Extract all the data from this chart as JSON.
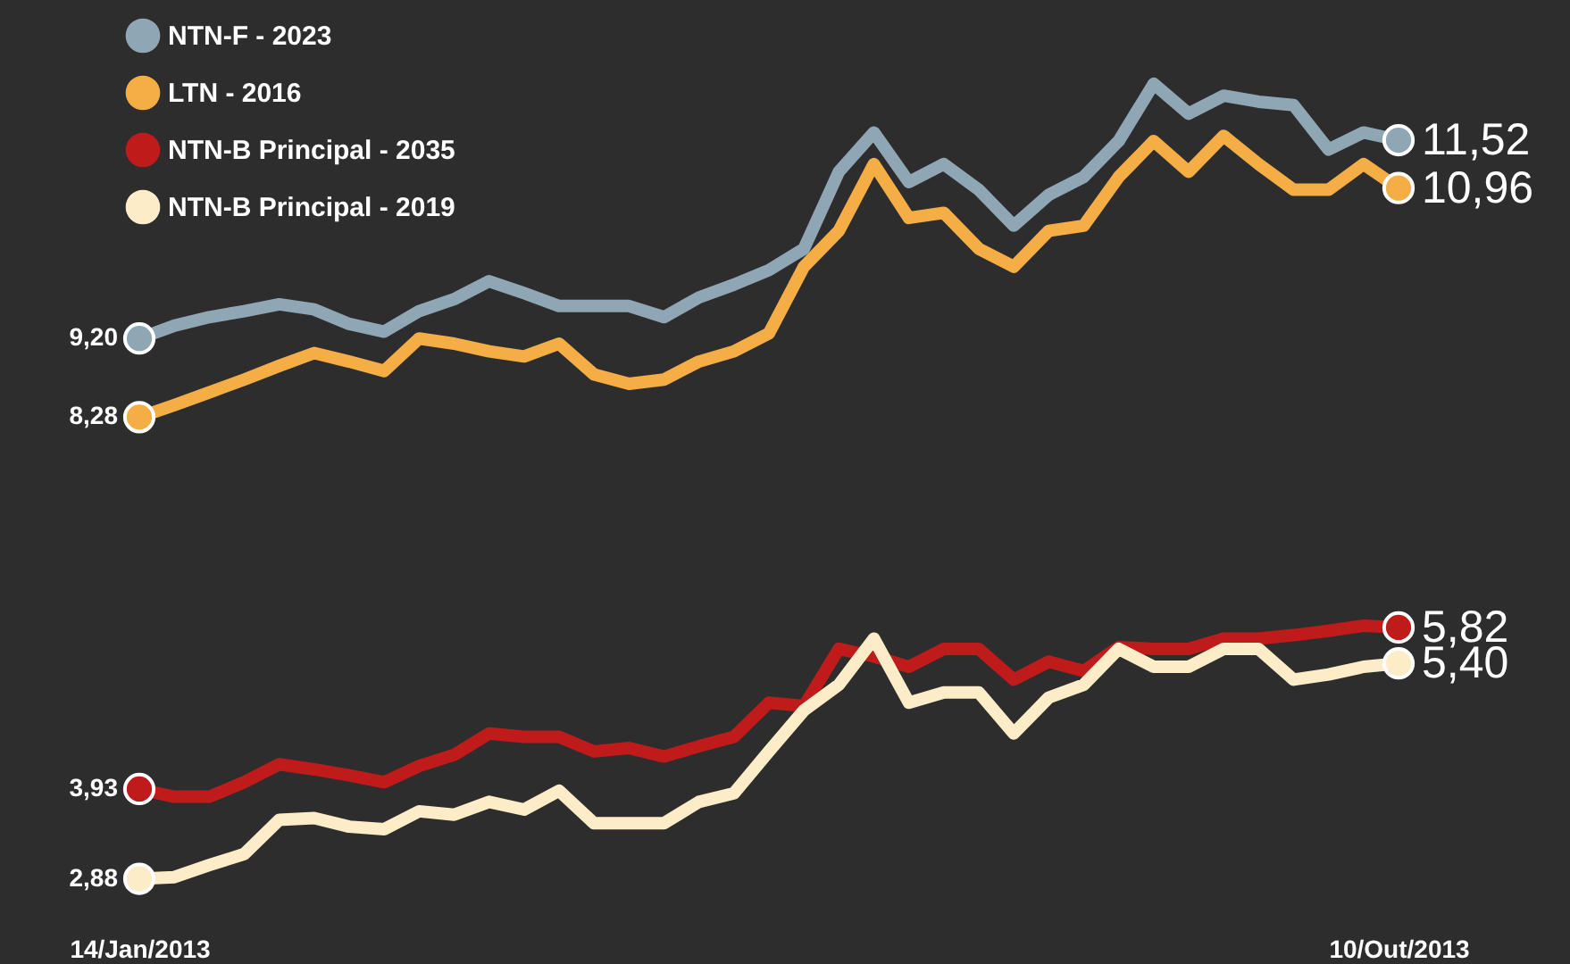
{
  "chart_data": {
    "type": "line",
    "categories": [
      "14/Jan/2013",
      null,
      null,
      null,
      null,
      null,
      null,
      null,
      null,
      null,
      null,
      null,
      null,
      null,
      null,
      null,
      null,
      null,
      null,
      null,
      null,
      null,
      null,
      null,
      null,
      null,
      null,
      null,
      null,
      null,
      null,
      null,
      null,
      null,
      null,
      null,
      "10/Out/2013"
    ],
    "legend": "top left",
    "series": [
      {
        "name": "NTN-F - 2023",
        "color": "#8fa6b5",
        "values": [
          9.2,
          9.35,
          9.45,
          9.52,
          9.6,
          9.54,
          9.37,
          9.28,
          9.52,
          9.66,
          9.87,
          9.73,
          9.58,
          9.58,
          9.58,
          9.45,
          9.68,
          9.83,
          10.0,
          10.25,
          11.15,
          11.61,
          11.03,
          11.24,
          10.94,
          10.52,
          10.88,
          11.09,
          11.51,
          12.18,
          11.83,
          12.04,
          11.97,
          11.93,
          11.41,
          11.61,
          11.52
        ],
        "value_labels": [
          "9,20",
          null,
          null,
          null,
          null,
          null,
          null,
          null,
          null,
          null,
          null,
          null,
          null,
          null,
          null,
          null,
          null,
          null,
          null,
          null,
          null,
          null,
          null,
          null,
          null,
          null,
          null,
          null,
          null,
          null,
          null,
          null,
          null,
          null,
          null,
          null,
          "11,52"
        ]
      },
      {
        "name": "LTN - 2016",
        "color": "#f5ad45",
        "values": [
          8.28,
          8.42,
          8.57,
          8.72,
          8.88,
          9.03,
          8.93,
          8.82,
          9.2,
          9.14,
          9.05,
          8.99,
          9.14,
          8.78,
          8.67,
          8.72,
          8.93,
          9.05,
          9.26,
          10.04,
          10.46,
          11.24,
          10.61,
          10.67,
          10.25,
          10.04,
          10.46,
          10.52,
          11.09,
          11.51,
          11.15,
          11.57,
          11.24,
          10.94,
          10.94,
          11.24,
          10.96
        ],
        "value_labels": [
          "8,28",
          null,
          null,
          null,
          null,
          null,
          null,
          null,
          null,
          null,
          null,
          null,
          null,
          null,
          null,
          null,
          null,
          null,
          null,
          null,
          null,
          null,
          null,
          null,
          null,
          null,
          null,
          null,
          null,
          null,
          null,
          null,
          null,
          null,
          null,
          null,
          "10,96"
        ]
      },
      {
        "name": "NTN-B Principal - 2035",
        "color": "#c01b1b",
        "values": [
          3.93,
          3.84,
          3.84,
          4.01,
          4.22,
          4.16,
          4.09,
          4.01,
          4.2,
          4.33,
          4.58,
          4.54,
          4.54,
          4.37,
          4.41,
          4.31,
          4.43,
          4.54,
          4.94,
          4.9,
          5.57,
          5.48,
          5.36,
          5.57,
          5.57,
          5.21,
          5.42,
          5.31,
          5.59,
          5.57,
          5.57,
          5.69,
          5.69,
          5.73,
          5.78,
          5.84,
          5.82
        ],
        "value_labels": [
          "3,93",
          null,
          null,
          null,
          null,
          null,
          null,
          null,
          null,
          null,
          null,
          null,
          null,
          null,
          null,
          null,
          null,
          null,
          null,
          null,
          null,
          null,
          null,
          null,
          null,
          null,
          null,
          null,
          null,
          null,
          null,
          null,
          null,
          null,
          null,
          null,
          "5,82"
        ]
      },
      {
        "name": "NTN-B Principal - 2019",
        "color": "#fcedc8",
        "values": [
          2.88,
          2.9,
          3.04,
          3.17,
          3.57,
          3.59,
          3.49,
          3.46,
          3.67,
          3.63,
          3.78,
          3.69,
          3.91,
          3.53,
          3.53,
          3.53,
          3.78,
          3.88,
          4.37,
          4.85,
          5.15,
          5.69,
          4.94,
          5.06,
          5.06,
          4.58,
          5.0,
          5.15,
          5.57,
          5.36,
          5.36,
          5.57,
          5.57,
          5.21,
          5.27,
          5.36,
          5.4
        ],
        "value_labels": [
          "2,88",
          null,
          null,
          null,
          null,
          null,
          null,
          null,
          null,
          null,
          null,
          null,
          null,
          null,
          null,
          null,
          null,
          null,
          null,
          null,
          null,
          null,
          null,
          null,
          null,
          null,
          null,
          null,
          null,
          null,
          null,
          null,
          null,
          null,
          null,
          null,
          "5,40"
        ]
      }
    ]
  }
}
